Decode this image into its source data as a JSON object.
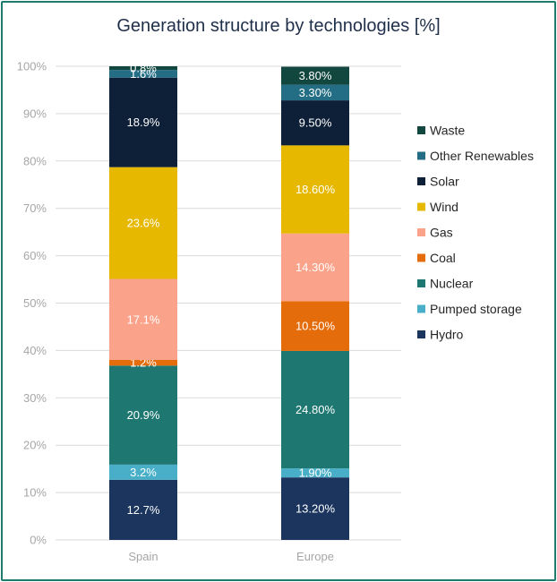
{
  "chart_data": {
    "type": "bar",
    "stacked": true,
    "title": "Generation structure by technologies [%]",
    "xlabel": "",
    "ylabel": "",
    "ylim": [
      0,
      100
    ],
    "y_ticks": [
      0,
      10,
      20,
      30,
      40,
      50,
      60,
      70,
      80,
      90,
      100
    ],
    "y_tick_labels": [
      "0%",
      "10%",
      "20%",
      "30%",
      "40%",
      "50%",
      "60%",
      "70%",
      "80%",
      "90%",
      "100%"
    ],
    "categories": [
      "Spain",
      "Europe"
    ],
    "legend_position": "right",
    "series": [
      {
        "name": "Hydro",
        "color": "#1b355e",
        "label_color": "#ffffff",
        "values": [
          12.7,
          13.2
        ],
        "labels": [
          "12.7%",
          "13.20%"
        ]
      },
      {
        "name": "Pumped storage",
        "color": "#49afc8",
        "label_color": "#ffffff",
        "values": [
          3.2,
          1.9
        ],
        "labels": [
          "3.2%",
          "1.90%"
        ]
      },
      {
        "name": "Nuclear",
        "color": "#1e7871",
        "label_color": "#ffffff",
        "values": [
          20.9,
          24.8
        ],
        "labels": [
          "20.9%",
          "24.80%"
        ]
      },
      {
        "name": "Coal",
        "color": "#e46c0a",
        "label_color": "#ffffff",
        "values": [
          1.2,
          10.5
        ],
        "labels": [
          "1.2%",
          "10.50%"
        ]
      },
      {
        "name": "Gas",
        "color": "#fba38a",
        "label_color": "#ffffff",
        "values": [
          17.1,
          14.3
        ],
        "labels": [
          "17.1%",
          "14.30%"
        ]
      },
      {
        "name": "Wind",
        "color": "#e6b800",
        "label_color": "#ffffff",
        "values": [
          23.6,
          18.6
        ],
        "labels": [
          "23.6%",
          "18.60%"
        ]
      },
      {
        "name": "Solar",
        "color": "#0e1f38",
        "label_color": "#ffffff",
        "values": [
          18.9,
          9.5
        ],
        "labels": [
          "18.9%",
          "9.50%"
        ]
      },
      {
        "name": "Other Renewables",
        "color": "#246e85",
        "label_color": "#ffffff",
        "values": [
          1.6,
          3.3
        ],
        "labels": [
          "1.6%",
          "3.30%"
        ]
      },
      {
        "name": "Waste",
        "color": "#11473f",
        "label_color": "#ffffff",
        "values": [
          0.8,
          3.8
        ],
        "labels": [
          "0.8%",
          "3.80%"
        ]
      }
    ]
  }
}
